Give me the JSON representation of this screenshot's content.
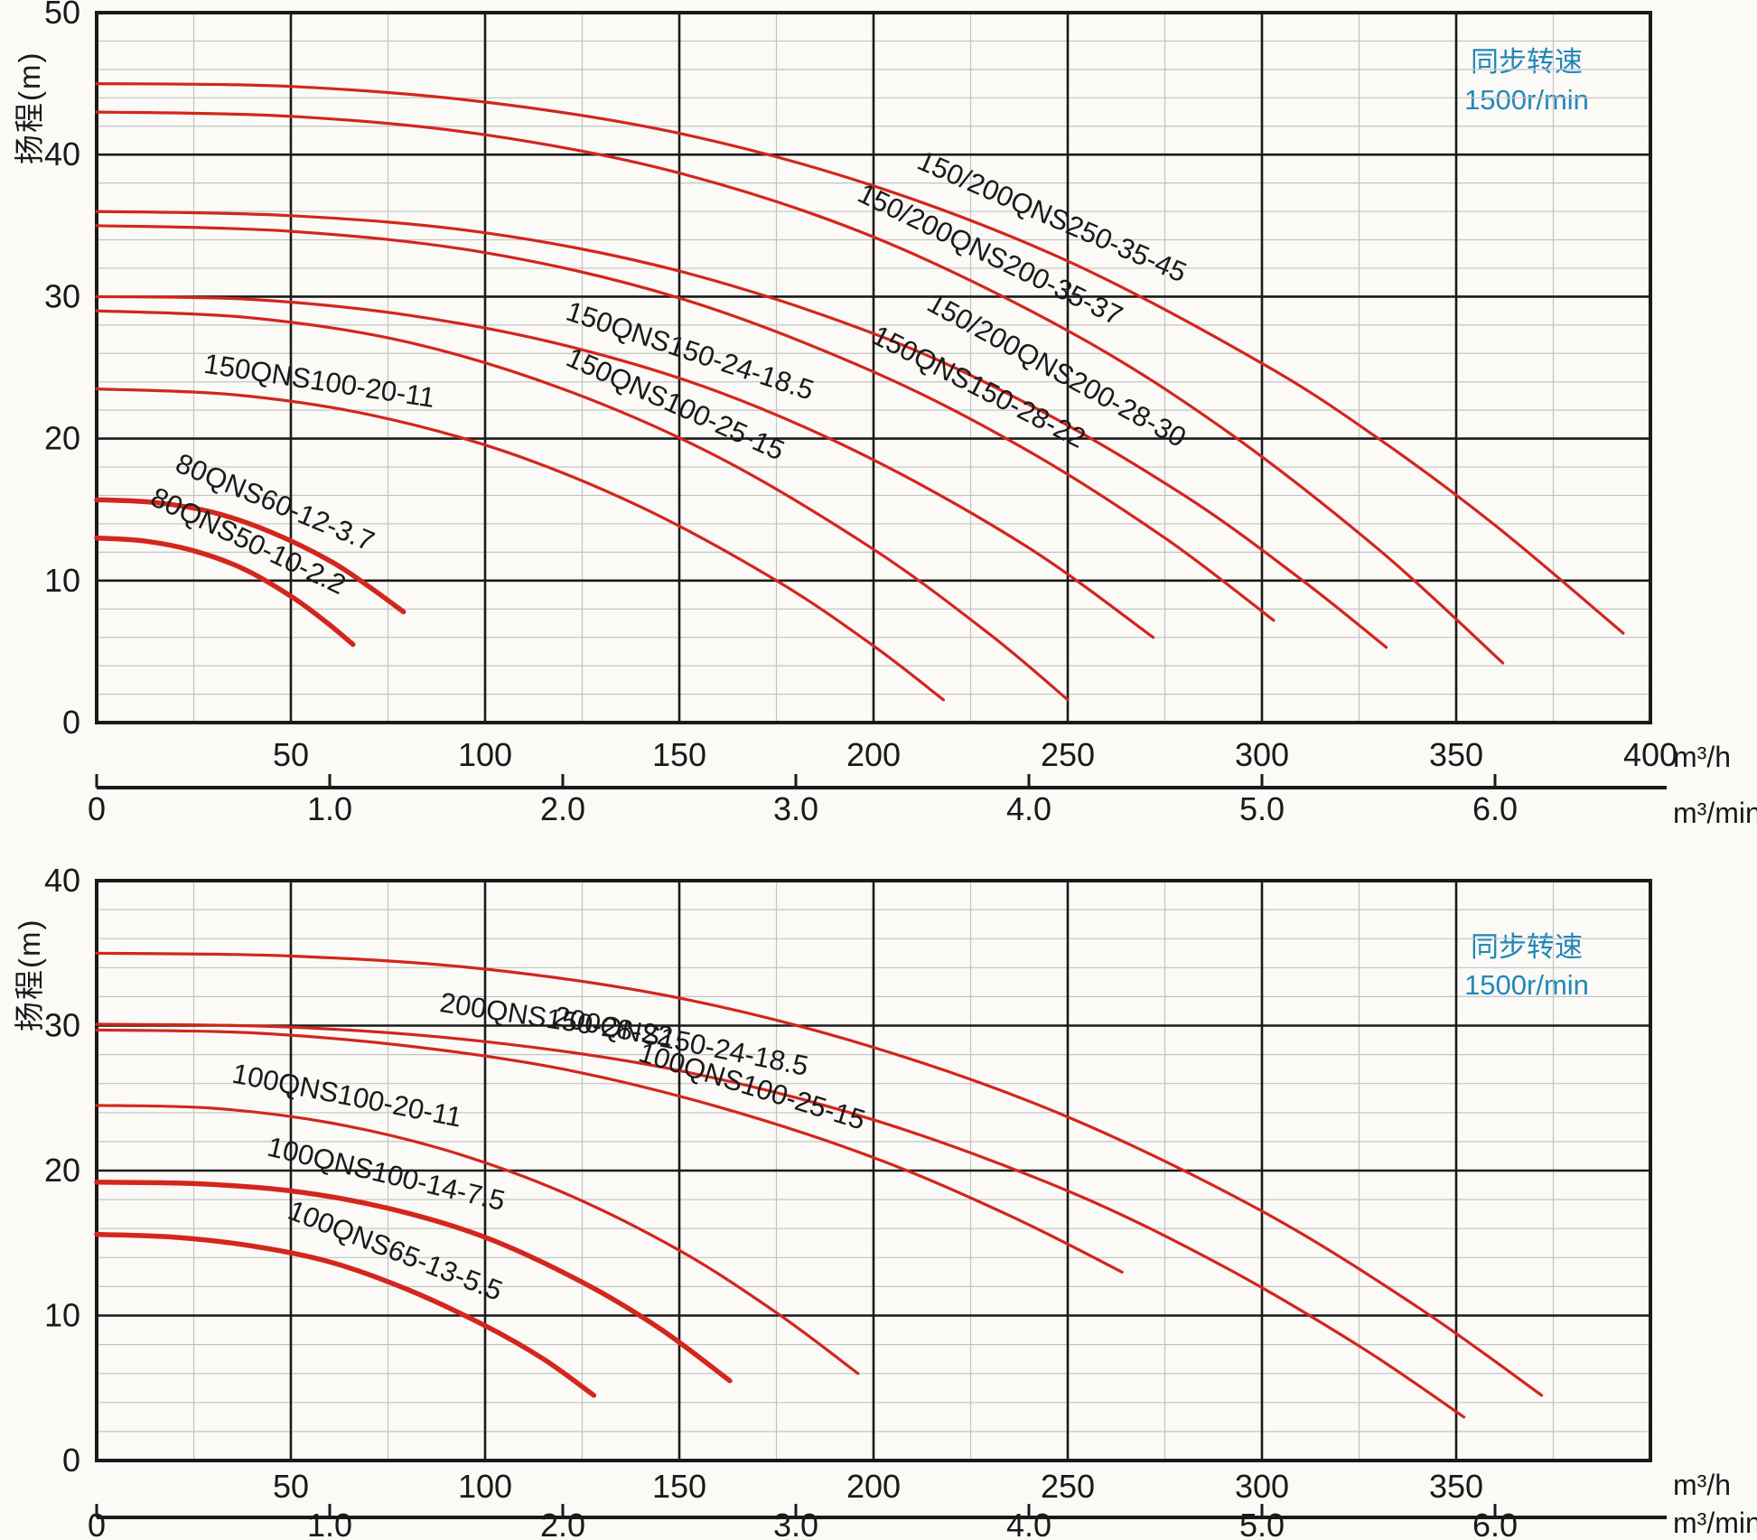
{
  "palette": {
    "curve_red": "#d3261d",
    "note_blue": "#2187ba",
    "grid_major": "#1a1a1a",
    "grid_minor": "#c3c3c3",
    "text": "#1a1a1a",
    "background": "#fbfaf7"
  },
  "chart_data": [
    {
      "type": "line",
      "title": "",
      "ylabel": "扬程(m)",
      "unit_hr": "m³/h",
      "unit_min": "m³/min",
      "note": {
        "line1": "同步转速",
        "line2": "1500r/min"
      },
      "ylim": [
        0,
        50
      ],
      "xlim": [
        0,
        400
      ],
      "grid": "on",
      "y_ticks": [
        0,
        10,
        20,
        30,
        40,
        50
      ],
      "x_ticks_m3h": [
        {
          "v": 50,
          "label": "50"
        },
        {
          "v": 100,
          "label": "100"
        },
        {
          "v": 150,
          "label": "150"
        },
        {
          "v": 200,
          "label": "200"
        },
        {
          "v": 250,
          "label": "250"
        },
        {
          "v": 300,
          "label": "300"
        },
        {
          "v": 350,
          "label": "350"
        },
        {
          "v": 400,
          "label": "400"
        }
      ],
      "x_ticks_m3min": [
        {
          "v": 0,
          "label": "0"
        },
        {
          "v": 1,
          "label": "1.0"
        },
        {
          "v": 2,
          "label": "2.0"
        },
        {
          "v": 3,
          "label": "3.0"
        },
        {
          "v": 4,
          "label": "4.0"
        },
        {
          "v": 5,
          "label": "5.0"
        },
        {
          "v": 6,
          "label": "6.0"
        }
      ],
      "series": [
        {
          "name": "150/200QNS250-35-45",
          "thick": false,
          "label_q": 245,
          "label_dy": 2.0,
          "points": [
            [
              0,
              45
            ],
            [
              50,
              44.8
            ],
            [
              100,
              43.7
            ],
            [
              150,
              41.5
            ],
            [
              200,
              37.8
            ],
            [
              250,
              32.5
            ],
            [
              300,
              25.3
            ],
            [
              330,
              20.0
            ],
            [
              360,
              13.9
            ],
            [
              393,
              6.3
            ]
          ]
        },
        {
          "name": "150/200QNS200-35-37",
          "thick": false,
          "label_q": 229,
          "label_dy": 2.0,
          "points": [
            [
              0,
              43
            ],
            [
              50,
              42.7
            ],
            [
              100,
              41.4
            ],
            [
              150,
              38.7
            ],
            [
              200,
              34.2
            ],
            [
              250,
              27.6
            ],
            [
              290,
              20.7
            ],
            [
              330,
              12.2
            ],
            [
              362,
              4.2
            ]
          ]
        },
        {
          "name": "150/200QNS200-28-30",
          "thick": false,
          "label_q": 246,
          "label_dy": 2.8,
          "points": [
            [
              0,
              36
            ],
            [
              50,
              35.7
            ],
            [
              100,
              34.5
            ],
            [
              150,
              31.8
            ],
            [
              200,
              27.4
            ],
            [
              240,
              22.4
            ],
            [
              280,
              16.0
            ],
            [
              310,
              10.1
            ],
            [
              332,
              5.3
            ]
          ]
        },
        {
          "name": "150QNS150-28-22",
          "thick": false,
          "label_q": 226,
          "label_dy": 2.0,
          "points": [
            [
              0,
              35
            ],
            [
              50,
              34.6
            ],
            [
              100,
              33.1
            ],
            [
              150,
              29.9
            ],
            [
              200,
              24.7
            ],
            [
              240,
              19.1
            ],
            [
              275,
              13.0
            ],
            [
              303,
              7.2
            ]
          ]
        },
        {
          "name": "150QNS150-24-18.5",
          "thick": false,
          "label_q": 152,
          "label_dy": 1.6,
          "points": [
            [
              0,
              30
            ],
            [
              40,
              29.8
            ],
            [
              80,
              28.7
            ],
            [
              120,
              26.6
            ],
            [
              160,
              23.3
            ],
            [
              200,
              18.5
            ],
            [
              240,
              12.3
            ],
            [
              272,
              6.0
            ]
          ]
        },
        {
          "name": "150QNS100-25-15",
          "thick": false,
          "label_q": 148,
          "label_dy": 1.7,
          "points": [
            [
              0,
              29
            ],
            [
              40,
              28.5
            ],
            [
              80,
              26.8
            ],
            [
              120,
              23.5
            ],
            [
              160,
              18.7
            ],
            [
              200,
              12.2
            ],
            [
              230,
              6.2
            ],
            [
              250,
              1.6
            ]
          ]
        },
        {
          "name": "150QNS100-20-11",
          "thick": false,
          "label_q": 57,
          "label_dy": 1.2,
          "points": [
            [
              0,
              23.5
            ],
            [
              35,
              23.1
            ],
            [
              70,
              21.7
            ],
            [
              105,
              19.1
            ],
            [
              140,
              15.2
            ],
            [
              175,
              10.0
            ],
            [
              200,
              5.4
            ],
            [
              218,
              1.6
            ]
          ]
        },
        {
          "name": "80QNS60-12-3.7",
          "thick": true,
          "label_q": 45,
          "label_dy": 1.5,
          "points": [
            [
              0,
              15.7
            ],
            [
              15,
              15.5
            ],
            [
              30,
              14.8
            ],
            [
              45,
              13.4
            ],
            [
              60,
              11.4
            ],
            [
              70,
              9.6
            ],
            [
              79,
              7.8
            ]
          ]
        },
        {
          "name": "80QNS50-10-2.2",
          "thick": true,
          "label_q": 38,
          "label_dy": 1.4,
          "points": [
            [
              0,
              13
            ],
            [
              12,
              12.8
            ],
            [
              25,
              12.1
            ],
            [
              38,
              10.8
            ],
            [
              50,
              8.9
            ],
            [
              59,
              7.1
            ],
            [
              66,
              5.5
            ]
          ]
        }
      ]
    },
    {
      "type": "line",
      "title": "",
      "ylabel": "扬程(m)",
      "unit_hr": "m³/h",
      "unit_min": "m³/min",
      "note": {
        "line1": "同步转速",
        "line2": "1500r/min"
      },
      "ylim": [
        0,
        40
      ],
      "xlim": [
        0,
        400
      ],
      "grid": "on",
      "y_ticks": [
        0,
        10,
        20,
        30,
        40
      ],
      "x_ticks_m3h": [
        {
          "v": 50,
          "label": "50"
        },
        {
          "v": 100,
          "label": "100"
        },
        {
          "v": 150,
          "label": "150"
        },
        {
          "v": 200,
          "label": "200"
        },
        {
          "v": 250,
          "label": "250"
        },
        {
          "v": 300,
          "label": "300"
        },
        {
          "v": 350,
          "label": "350"
        }
      ],
      "x_ticks_m3min": [
        {
          "v": 0,
          "label": "0"
        },
        {
          "v": 1,
          "label": "1.0"
        },
        {
          "v": 2,
          "label": "2.0"
        },
        {
          "v": 3,
          "label": "3.0"
        },
        {
          "v": 4,
          "label": "4.0"
        },
        {
          "v": 5,
          "label": "5.0"
        },
        {
          "v": 6,
          "label": "6.0"
        }
      ],
      "series": [
        {
          "name": "200QNS150-28-22",
          "thick": false,
          "label_q": 118,
          "label_dy": -3.4,
          "points": [
            [
              0,
              35
            ],
            [
              50,
              34.8
            ],
            [
              100,
              33.9
            ],
            [
              150,
              31.9
            ],
            [
              200,
              28.5
            ],
            [
              250,
              23.7
            ],
            [
              300,
              17.2
            ],
            [
              340,
              10.6
            ],
            [
              372,
              4.5
            ]
          ]
        },
        {
          "name": "200QNS150-24-18.5",
          "thick": false,
          "label_q": 150,
          "label_dy": 1.4,
          "points": [
            [
              0,
              30.1
            ],
            [
              50,
              29.9
            ],
            [
              100,
              28.9
            ],
            [
              150,
              26.9
            ],
            [
              200,
              23.5
            ],
            [
              250,
              18.6
            ],
            [
              290,
              13.4
            ],
            [
              325,
              7.9
            ],
            [
              352,
              3.0
            ]
          ]
        },
        {
          "name": "100QNS100-25-15",
          "thick": false,
          "label_q": 168,
          "label_dy": 1.5,
          "points": [
            [
              0,
              29.7
            ],
            [
              40,
              29.5
            ],
            [
              80,
              28.6
            ],
            [
              120,
              27.0
            ],
            [
              160,
              24.4
            ],
            [
              200,
              20.9
            ],
            [
              235,
              16.9
            ],
            [
              264,
              13.0
            ]
          ]
        },
        {
          "name": "100QNS100-20-11",
          "thick": false,
          "label_q": 64,
          "label_dy": 1.5,
          "points": [
            [
              0,
              24.5
            ],
            [
              30,
              24.3
            ],
            [
              60,
              23.3
            ],
            [
              90,
              21.4
            ],
            [
              120,
              18.5
            ],
            [
              150,
              14.5
            ],
            [
              175,
              10.2
            ],
            [
              196,
              6.0
            ]
          ]
        },
        {
          "name": "100QNS100-14-7.5",
          "thick": true,
          "label_q": 74,
          "label_dy": 1.7,
          "points": [
            [
              0,
              19.2
            ],
            [
              25,
              19.1
            ],
            [
              50,
              18.6
            ],
            [
              75,
              17.4
            ],
            [
              100,
              15.4
            ],
            [
              125,
              12.3
            ],
            [
              145,
              9.1
            ],
            [
              163,
              5.5
            ]
          ]
        },
        {
          "name": "100QNS65-13-5.5",
          "thick": true,
          "label_q": 76,
          "label_dy": 1.7,
          "points": [
            [
              0,
              15.6
            ],
            [
              20,
              15.4
            ],
            [
              40,
              14.8
            ],
            [
              60,
              13.7
            ],
            [
              80,
              11.8
            ],
            [
              100,
              9.3
            ],
            [
              115,
              7.0
            ],
            [
              128,
              4.5
            ]
          ]
        }
      ]
    }
  ]
}
